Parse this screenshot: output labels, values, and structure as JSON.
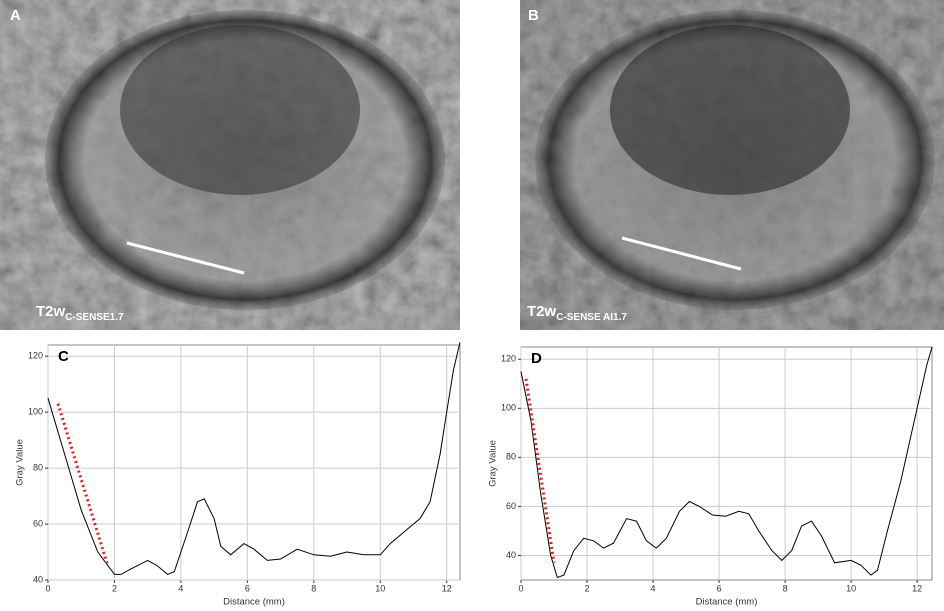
{
  "panels": [
    {
      "label": "A",
      "caption": "T2w",
      "caption_sub": "C-SENSE1.7"
    },
    {
      "label": "B",
      "caption": "T2w",
      "caption_sub": "C-SENSE AI1.7"
    }
  ],
  "chart_data": [
    {
      "type": "line",
      "panel_label": "C",
      "xlabel": "Distance (mm)",
      "ylabel": "Gray Value",
      "x": [
        0,
        0.5,
        1,
        1.5,
        2,
        2.2,
        2.5,
        3,
        3.3,
        3.6,
        3.8,
        4.2,
        4.5,
        4.7,
        5,
        5.2,
        5.5,
        5.9,
        6.2,
        6.6,
        7,
        7.5,
        8,
        8.5,
        9,
        9.5,
        10,
        10.3,
        10.8,
        11.2,
        11.5,
        11.8,
        12,
        12.2,
        12.4
      ],
      "values": [
        105,
        85,
        65,
        50,
        42,
        42,
        44,
        47,
        45,
        42,
        43,
        57,
        68,
        69,
        62,
        52,
        49,
        53,
        51,
        47,
        47.5,
        51,
        49,
        48.5,
        50,
        49,
        49,
        53,
        58,
        62,
        68,
        85,
        100,
        115,
        125
      ],
      "color": "#000000",
      "annotation_line": {
        "x": [
          0.3,
          1.8
        ],
        "y": [
          103,
          45
        ],
        "color": "#e02020"
      },
      "xlim": [
        0,
        12.4
      ],
      "ylim": [
        40,
        124
      ],
      "xticks": [
        0,
        2,
        4,
        6,
        8,
        10,
        12
      ],
      "yticks": [
        40,
        60,
        80,
        100,
        120
      ],
      "grid": true
    },
    {
      "type": "line",
      "panel_label": "D",
      "xlabel": "Distance (mm)",
      "ylabel": "Gray Value",
      "x": [
        0,
        0.3,
        0.6,
        0.9,
        1.1,
        1.3,
        1.6,
        1.9,
        2.2,
        2.5,
        2.8,
        3.2,
        3.5,
        3.8,
        4.1,
        4.4,
        4.8,
        5.1,
        5.4,
        5.8,
        6.2,
        6.6,
        6.9,
        7.2,
        7.6,
        7.9,
        8.2,
        8.5,
        8.8,
        9.1,
        9.5,
        10,
        10.3,
        10.6,
        10.8,
        11.1,
        11.5,
        12,
        12.3,
        12.45
      ],
      "values": [
        115,
        95,
        65,
        40,
        31,
        32,
        42,
        47,
        46,
        43,
        45,
        55,
        54,
        46,
        43,
        47,
        58,
        62,
        60,
        56.5,
        56,
        58,
        57,
        50,
        42,
        38,
        42,
        52,
        54,
        48,
        37,
        38,
        36,
        32,
        34,
        50,
        70,
        100,
        118,
        125
      ],
      "color": "#000000",
      "annotation_line": {
        "x": [
          0.15,
          1
        ],
        "y": [
          112,
          37
        ],
        "color": "#e02020"
      },
      "xlim": [
        0,
        12.45
      ],
      "ylim": [
        30,
        125
      ],
      "xticks": [
        0,
        2,
        4,
        6,
        8,
        10,
        12
      ],
      "yticks": [
        40,
        60,
        80,
        100,
        120
      ],
      "grid": true
    }
  ]
}
